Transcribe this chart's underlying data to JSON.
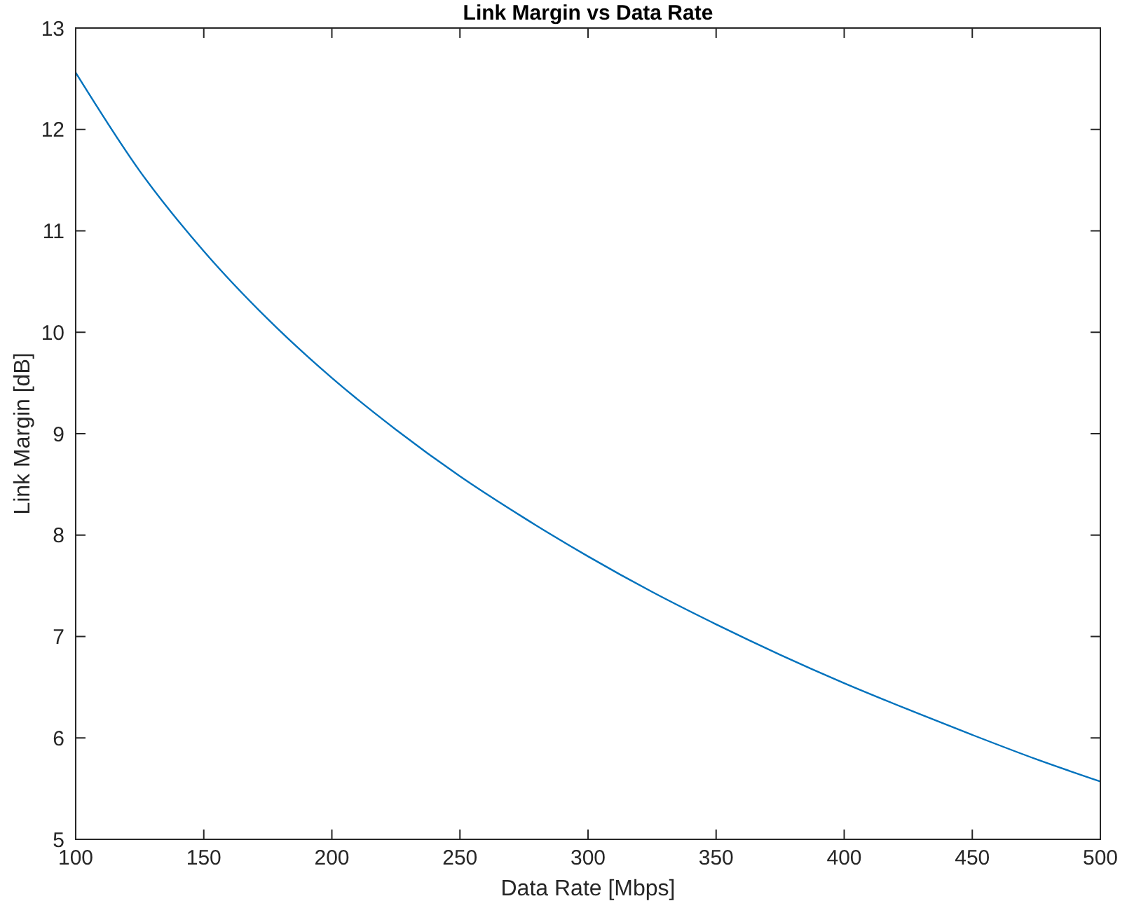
{
  "chart_data": {
    "type": "line",
    "title": "Link Margin vs Data Rate",
    "xlabel": "Data Rate [Mbps]",
    "ylabel": "Link Margin [dB]",
    "x": [
      100,
      125,
      150,
      175,
      200,
      225,
      250,
      275,
      300,
      325,
      350,
      375,
      400,
      425,
      450,
      475,
      500
    ],
    "series": [
      {
        "color": "#0072bd",
        "values": [
          12.56,
          11.59,
          10.8,
          10.13,
          9.55,
          9.04,
          8.58,
          8.17,
          7.79,
          7.44,
          7.12,
          6.82,
          6.54,
          6.28,
          6.03,
          5.79,
          5.57
        ]
      }
    ],
    "xlim": [
      100,
      500
    ],
    "xticks": [
      100,
      150,
      200,
      250,
      300,
      350,
      400,
      450,
      500
    ],
    "ylim": [
      5,
      13
    ],
    "yticks": [
      5,
      6,
      7,
      8,
      9,
      10,
      11,
      12,
      13
    ],
    "grid": false,
    "marker": "none",
    "line_style": "solid"
  }
}
